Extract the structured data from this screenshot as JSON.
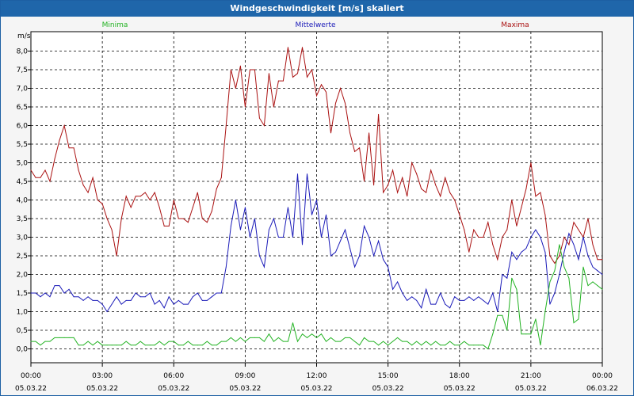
{
  "window": {
    "title": "Windgeschwindigkeit [m/s] skaliert"
  },
  "legend": {
    "min_label": "Minima",
    "mean_label": "Mittelwerte",
    "max_label": "Maxima"
  },
  "colors": {
    "min": "#22b222",
    "mean": "#1a1ab8",
    "max": "#aa1111",
    "grid": "#000000",
    "axis": "#000000"
  },
  "chart_data": {
    "type": "line",
    "title": "Windgeschwindigkeit [m/s] skaliert",
    "ylabel": "m/s",
    "ylim": [
      0,
      8.0
    ],
    "yticks": [
      "8,0",
      "7,5",
      "7,0",
      "6,5",
      "6,0",
      "5,5",
      "5,0",
      "4,5",
      "4,0",
      "3,5",
      "3,0",
      "2,5",
      "2,0",
      "1,5",
      "1,0",
      "0,5",
      "0,0"
    ],
    "xlim_hours": [
      0,
      24
    ],
    "xticks": [
      {
        "time": "00:00",
        "date": "05.03.22"
      },
      {
        "time": "03:00",
        "date": "05.03.22"
      },
      {
        "time": "06:00",
        "date": "05.03.22"
      },
      {
        "time": "09:00",
        "date": "05.03.22"
      },
      {
        "time": "12:00",
        "date": "05.03.22"
      },
      {
        "time": "15:00",
        "date": "05.03.22"
      },
      {
        "time": "18:00",
        "date": "05.03.22"
      },
      {
        "time": "21:00",
        "date": "05.03.22"
      },
      {
        "time": "00:00",
        "date": "06.03.22"
      }
    ],
    "grid": true,
    "series": [
      {
        "name": "Maxima",
        "x": [
          0,
          0.2,
          0.4,
          0.6,
          0.8,
          1.0,
          1.2,
          1.4,
          1.6,
          1.8,
          2.0,
          2.2,
          2.4,
          2.6,
          2.8,
          3.0,
          3.2,
          3.4,
          3.6,
          3.8,
          4.0,
          4.2,
          4.4,
          4.6,
          4.8,
          5.0,
          5.2,
          5.4,
          5.6,
          5.8,
          6.0,
          6.2,
          6.4,
          6.6,
          6.8,
          7.0,
          7.2,
          7.4,
          7.6,
          7.8,
          8.0,
          8.2,
          8.4,
          8.6,
          8.8,
          9.0,
          9.2,
          9.4,
          9.6,
          9.8,
          10.0,
          10.2,
          10.4,
          10.6,
          10.8,
          11.0,
          11.2,
          11.4,
          11.6,
          11.8,
          12.0,
          12.2,
          12.4,
          12.6,
          12.8,
          13.0,
          13.2,
          13.4,
          13.6,
          13.8,
          14.0,
          14.2,
          14.4,
          14.6,
          14.8,
          15.0,
          15.2,
          15.4,
          15.6,
          15.8,
          16.0,
          16.2,
          16.4,
          16.6,
          16.8,
          17.0,
          17.2,
          17.4,
          17.6,
          17.8,
          18.0,
          18.2,
          18.4,
          18.6,
          18.8,
          19.0,
          19.2,
          19.4,
          19.6,
          19.8,
          20.0,
          20.2,
          20.4,
          20.6,
          20.8,
          21.0,
          21.2,
          21.4,
          21.6,
          21.8,
          22.0,
          22.2,
          22.4,
          22.6,
          22.8,
          23.0,
          23.2,
          23.4,
          23.6,
          23.8,
          24.0
        ],
        "y": [
          4.8,
          4.6,
          4.6,
          4.8,
          4.5,
          5.1,
          5.6,
          6.0,
          5.4,
          5.4,
          4.8,
          4.4,
          4.2,
          4.6,
          4.0,
          3.9,
          3.5,
          3.2,
          2.5,
          3.5,
          4.1,
          3.8,
          4.1,
          4.1,
          4.2,
          4.0,
          4.2,
          3.8,
          3.3,
          3.3,
          4.0,
          3.5,
          3.5,
          3.4,
          3.8,
          4.2,
          3.5,
          3.4,
          3.7,
          4.3,
          4.6,
          6.0,
          7.5,
          7.0,
          7.6,
          6.5,
          7.5,
          7.5,
          6.2,
          6.0,
          7.4,
          6.5,
          7.2,
          7.2,
          8.1,
          7.3,
          7.4,
          8.1,
          7.3,
          7.5,
          6.8,
          7.1,
          6.9,
          5.8,
          6.6,
          7.0,
          6.6,
          5.8,
          5.3,
          5.4,
          4.5,
          5.8,
          4.4,
          6.3,
          4.2,
          4.4,
          4.8,
          4.2,
          4.6,
          4.1,
          5.0,
          4.7,
          4.3,
          4.2,
          4.8,
          4.4,
          4.1,
          4.6,
          4.2,
          4.0,
          3.6,
          3.2,
          2.6,
          3.2,
          3.0,
          3.0,
          3.4,
          2.8,
          2.4,
          3.0,
          3.2,
          4.0,
          3.3,
          3.8,
          4.3,
          5.0,
          4.1,
          4.2,
          3.6,
          2.5,
          2.3,
          2.5,
          3.0,
          2.8,
          3.4,
          3.2,
          3.0,
          3.5,
          2.8,
          2.4,
          2.4
        ],
        "role": "max"
      },
      {
        "name": "Mittelwerte",
        "x": [
          0,
          0.2,
          0.4,
          0.6,
          0.8,
          1.0,
          1.2,
          1.4,
          1.6,
          1.8,
          2.0,
          2.2,
          2.4,
          2.6,
          2.8,
          3.0,
          3.2,
          3.4,
          3.6,
          3.8,
          4.0,
          4.2,
          4.4,
          4.6,
          4.8,
          5.0,
          5.2,
          5.4,
          5.6,
          5.8,
          6.0,
          6.2,
          6.4,
          6.6,
          6.8,
          7.0,
          7.2,
          7.4,
          7.6,
          7.8,
          8.0,
          8.2,
          8.4,
          8.6,
          8.8,
          9.0,
          9.2,
          9.4,
          9.6,
          9.8,
          10.0,
          10.2,
          10.4,
          10.6,
          10.8,
          11.0,
          11.2,
          11.4,
          11.6,
          11.8,
          12.0,
          12.2,
          12.4,
          12.6,
          12.8,
          13.0,
          13.2,
          13.4,
          13.6,
          13.8,
          14.0,
          14.2,
          14.4,
          14.6,
          14.8,
          15.0,
          15.2,
          15.4,
          15.6,
          15.8,
          16.0,
          16.2,
          16.4,
          16.6,
          16.8,
          17.0,
          17.2,
          17.4,
          17.6,
          17.8,
          18.0,
          18.2,
          18.4,
          18.6,
          18.8,
          19.0,
          19.2,
          19.4,
          19.6,
          19.8,
          20.0,
          20.2,
          20.4,
          20.6,
          20.8,
          21.0,
          21.2,
          21.4,
          21.6,
          21.8,
          22.0,
          22.2,
          22.4,
          22.6,
          22.8,
          23.0,
          23.2,
          23.4,
          23.6,
          23.8,
          24.0
        ],
        "y": [
          1.5,
          1.5,
          1.4,
          1.5,
          1.4,
          1.7,
          1.7,
          1.5,
          1.6,
          1.4,
          1.4,
          1.3,
          1.4,
          1.3,
          1.3,
          1.2,
          1.0,
          1.2,
          1.4,
          1.2,
          1.3,
          1.3,
          1.5,
          1.4,
          1.4,
          1.5,
          1.2,
          1.3,
          1.1,
          1.4,
          1.2,
          1.3,
          1.2,
          1.2,
          1.4,
          1.5,
          1.3,
          1.3,
          1.4,
          1.5,
          1.5,
          2.2,
          3.3,
          4.0,
          3.2,
          3.8,
          3.0,
          3.5,
          2.5,
          2.2,
          3.2,
          3.5,
          3.0,
          3.0,
          3.8,
          3.0,
          4.7,
          2.8,
          4.7,
          3.6,
          4.0,
          3.0,
          3.6,
          2.5,
          2.6,
          2.9,
          3.2,
          2.7,
          2.2,
          2.5,
          3.3,
          3.0,
          2.5,
          2.9,
          2.4,
          2.2,
          1.6,
          1.8,
          1.5,
          1.3,
          1.4,
          1.3,
          1.1,
          1.6,
          1.2,
          1.2,
          1.5,
          1.2,
          1.1,
          1.4,
          1.3,
          1.3,
          1.4,
          1.3,
          1.4,
          1.3,
          1.2,
          1.5,
          1.0,
          2.0,
          1.9,
          2.6,
          2.4,
          2.6,
          2.7,
          3.0,
          3.2,
          3.0,
          2.6,
          1.2,
          1.5,
          2.0,
          2.6,
          3.1,
          2.8,
          2.4,
          3.0,
          2.5,
          2.2,
          2.1,
          2.0
        ],
        "role": "mean"
      },
      {
        "name": "Minima",
        "x": [
          0,
          0.2,
          0.4,
          0.6,
          0.8,
          1.0,
          1.2,
          1.4,
          1.6,
          1.8,
          2.0,
          2.2,
          2.4,
          2.6,
          2.8,
          3.0,
          3.2,
          3.4,
          3.6,
          3.8,
          4.0,
          4.2,
          4.4,
          4.6,
          4.8,
          5.0,
          5.2,
          5.4,
          5.6,
          5.8,
          6.0,
          6.2,
          6.4,
          6.6,
          6.8,
          7.0,
          7.2,
          7.4,
          7.6,
          7.8,
          8.0,
          8.2,
          8.4,
          8.6,
          8.8,
          9.0,
          9.2,
          9.4,
          9.6,
          9.8,
          10.0,
          10.2,
          10.4,
          10.6,
          10.8,
          11.0,
          11.2,
          11.4,
          11.6,
          11.8,
          12.0,
          12.2,
          12.4,
          12.6,
          12.8,
          13.0,
          13.2,
          13.4,
          13.6,
          13.8,
          14.0,
          14.2,
          14.4,
          14.6,
          14.8,
          15.0,
          15.2,
          15.4,
          15.6,
          15.8,
          16.0,
          16.2,
          16.4,
          16.6,
          16.8,
          17.0,
          17.2,
          17.4,
          17.6,
          17.8,
          18.0,
          18.2,
          18.4,
          18.6,
          18.8,
          19.0,
          19.2,
          19.4,
          19.6,
          19.8,
          20.0,
          20.2,
          20.4,
          20.6,
          20.8,
          21.0,
          21.2,
          21.4,
          21.6,
          21.8,
          22.0,
          22.2,
          22.4,
          22.6,
          22.8,
          23.0,
          23.2,
          23.4,
          23.6,
          23.8,
          24.0
        ],
        "y": [
          0.2,
          0.2,
          0.1,
          0.2,
          0.2,
          0.3,
          0.3,
          0.3,
          0.3,
          0.3,
          0.1,
          0.1,
          0.2,
          0.1,
          0.2,
          0.1,
          0.1,
          0.1,
          0.1,
          0.1,
          0.2,
          0.1,
          0.1,
          0.2,
          0.1,
          0.1,
          0.1,
          0.2,
          0.1,
          0.2,
          0.2,
          0.1,
          0.1,
          0.2,
          0.1,
          0.1,
          0.1,
          0.2,
          0.1,
          0.1,
          0.2,
          0.2,
          0.3,
          0.2,
          0.3,
          0.2,
          0.3,
          0.3,
          0.3,
          0.2,
          0.4,
          0.2,
          0.3,
          0.2,
          0.2,
          0.7,
          0.2,
          0.4,
          0.3,
          0.4,
          0.3,
          0.4,
          0.2,
          0.3,
          0.2,
          0.2,
          0.3,
          0.3,
          0.2,
          0.1,
          0.3,
          0.2,
          0.2,
          0.1,
          0.2,
          0.1,
          0.2,
          0.3,
          0.2,
          0.2,
          0.1,
          0.2,
          0.1,
          0.2,
          0.1,
          0.2,
          0.1,
          0.1,
          0.2,
          0.1,
          0.1,
          0.2,
          0.1,
          0.1,
          0.1,
          0.1,
          0.0,
          0.4,
          0.9,
          0.9,
          0.5,
          1.9,
          1.6,
          0.4,
          0.4,
          0.4,
          0.8,
          0.1,
          1.0,
          1.8,
          2.1,
          2.8,
          2.2,
          1.9,
          0.7,
          0.8,
          2.2,
          1.7,
          1.8,
          1.7,
          1.6
        ],
        "role": "min"
      }
    ]
  }
}
